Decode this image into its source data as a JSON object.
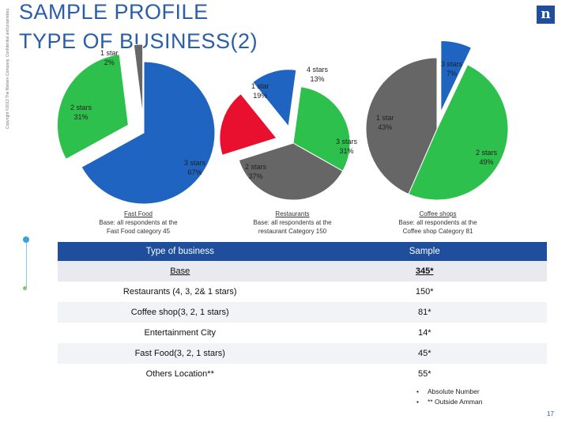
{
  "slide": {
    "title": "SAMPLE PROFILE",
    "subtitle": "TYPE OF BUSINESS(2)",
    "copyright": "Copyright ©2013 The Nielsen Company. Confidential and proprietary.",
    "logo": "n",
    "page_number": "17",
    "accent_color": "#1e4e9c"
  },
  "chart_data": [
    {
      "type": "pie",
      "caption_title": "Fast Food",
      "caption_line1": "Base: all respondents at the",
      "caption_line2": "Fast Food category 45",
      "slices": [
        {
          "label": "3 stars",
          "value": 67,
          "value_label": "67%",
          "color": "#1e64c0",
          "exploded": false
        },
        {
          "label": "2 stars",
          "value": 31,
          "value_label": "31%",
          "color": "#2ec04c",
          "exploded": true
        },
        {
          "label": "1 star",
          "value": 2,
          "value_label": "2%",
          "color": "#666666",
          "exploded": true
        }
      ]
    },
    {
      "type": "pie",
      "caption_title": "Restaurants",
      "caption_line1": "Base: all respondents  at the",
      "caption_line2": "restaurant Category 150",
      "slices": [
        {
          "label": "4 stars",
          "value": 13,
          "value_label": "13%",
          "color": "#1e64c0",
          "exploded": true
        },
        {
          "label": "3 stars",
          "value": 31,
          "value_label": "31%",
          "color": "#2ec04c",
          "exploded": false
        },
        {
          "label": "2 stars",
          "value": 37,
          "value_label": "37%",
          "color": "#666666",
          "exploded": false
        },
        {
          "label": "1 star",
          "value": 19,
          "value_label": "19%",
          "color": "#e8102e",
          "exploded": true
        }
      ]
    },
    {
      "type": "pie",
      "caption_title": "Coffee shops",
      "caption_line1": "Base: all respondents at the",
      "caption_line2": "Coffee shop Category 81",
      "slices": [
        {
          "label": "3 stars",
          "value": 7,
          "value_label": "7%",
          "color": "#1e64c0",
          "exploded": true
        },
        {
          "label": "2 stars",
          "value": 49,
          "value_label": "49%",
          "color": "#2ec04c",
          "exploded": false
        },
        {
          "label": "1 star",
          "value": 43,
          "value_label": "43%",
          "color": "#666666",
          "exploded": false
        }
      ]
    }
  ],
  "table": {
    "header": [
      "Type of business",
      "Sample"
    ],
    "base": [
      "Base",
      "345*"
    ],
    "rows": [
      [
        "Restaurants (4, 3, 2& 1 stars)",
        "150*"
      ],
      [
        "Coffee shop(3, 2, 1 stars)",
        "81*"
      ],
      [
        "Entertainment City",
        "14*"
      ],
      [
        "Fast Food(3, 2, 1 stars)",
        "45*"
      ],
      [
        "Others Location**",
        "55*"
      ]
    ]
  },
  "notes": [
    "Absolute Number",
    "** Outside Amman"
  ]
}
